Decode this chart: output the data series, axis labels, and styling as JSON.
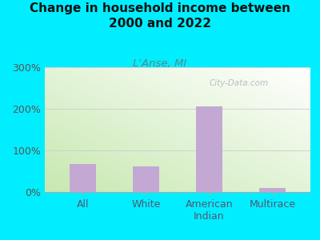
{
  "title": "Change in household income between\n2000 and 2022",
  "subtitle": "L'Anse, MI",
  "categories": [
    "All",
    "White",
    "American\nIndian",
    "Multirace"
  ],
  "values": [
    68,
    62,
    205,
    10
  ],
  "bar_color": "#c4a8d4",
  "ylim": [
    0,
    300
  ],
  "yticks": [
    0,
    100,
    200,
    300
  ],
  "ytick_labels": [
    "0%",
    "100%",
    "200%",
    "300%"
  ],
  "bg_outer": "#00eeff",
  "watermark": "City-Data.com",
  "title_fontsize": 11,
  "subtitle_fontsize": 9.5,
  "tick_fontsize": 9
}
